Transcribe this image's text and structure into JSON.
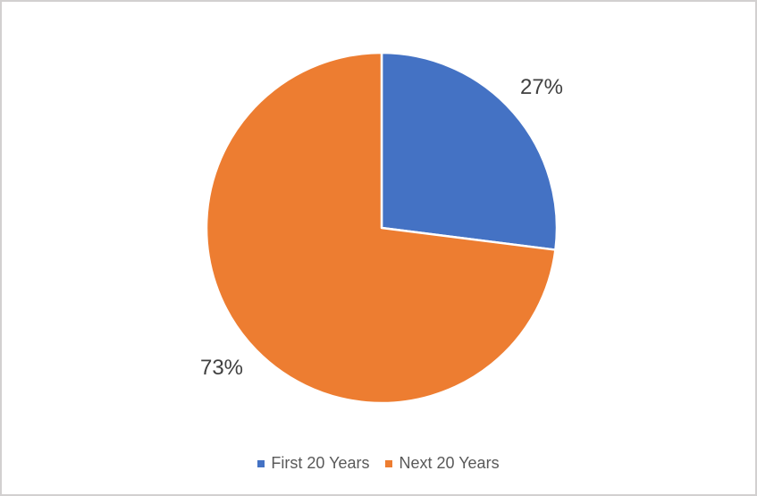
{
  "chart_data": {
    "type": "pie",
    "categories": [
      "First 20 Years",
      "Next 20 Years"
    ],
    "values": [
      27,
      73
    ],
    "labels": [
      "27%",
      "73%"
    ],
    "colors": [
      "#4472C4",
      "#ED7D31"
    ],
    "title": "",
    "start_angle_deg": 0,
    "direction": "clockwise",
    "legend_position": "bottom",
    "slice_border_color": "#FFFFFF",
    "label_color": "#404040",
    "legend_text_color": "#595959",
    "frame_border_color": "#D2D0D0"
  }
}
